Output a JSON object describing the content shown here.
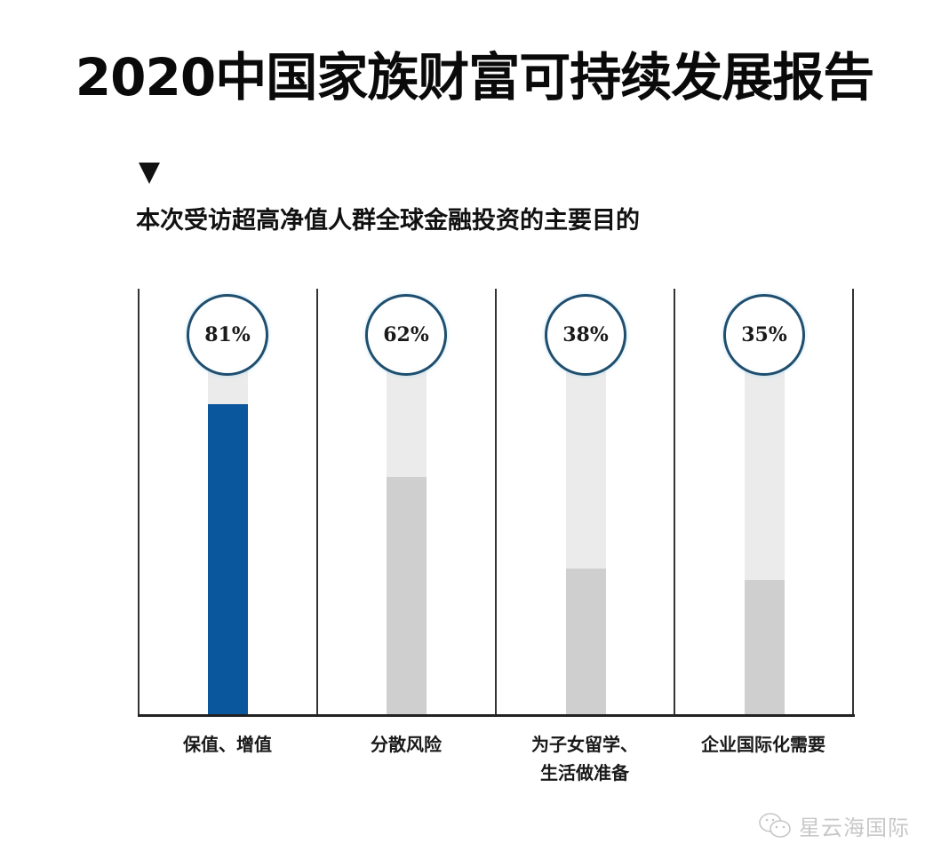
{
  "header": {
    "title": "2020中国家族财富可持续发展报告",
    "subtitle": "本次受访超高净值人群全球金融投资的主要目的",
    "marker_icon": "down-triangle-icon"
  },
  "chart_data": {
    "type": "bar",
    "title": "本次受访超高净值人群全球金融投资的主要目的",
    "categories": [
      "保值、增值",
      "分散风险",
      "为子女留学、生活做准备",
      "企业国际化需要"
    ],
    "values": [
      81,
      62,
      38,
      35
    ],
    "value_labels": [
      "81%",
      "62%",
      "38%",
      "35%"
    ],
    "unit": "%",
    "ylim": [
      0,
      100
    ],
    "xlabel": "",
    "ylabel": "",
    "grid": false,
    "legend": null,
    "colors": {
      "highlight": "#0b579e",
      "bar": "#cfcfcf",
      "track": "#ebebeb",
      "circle_stroke": "#1f4e6e"
    }
  },
  "axis_labels": [
    {
      "line1": "保值、增值",
      "line2": ""
    },
    {
      "line1": "分散风险",
      "line2": ""
    },
    {
      "line1": "为子女留学、",
      "line2": "生活做准备"
    },
    {
      "line1": "企业国际化需要",
      "line2": ""
    }
  ],
  "watermark": {
    "icon": "wechat-icon",
    "text": "星云海国际"
  }
}
